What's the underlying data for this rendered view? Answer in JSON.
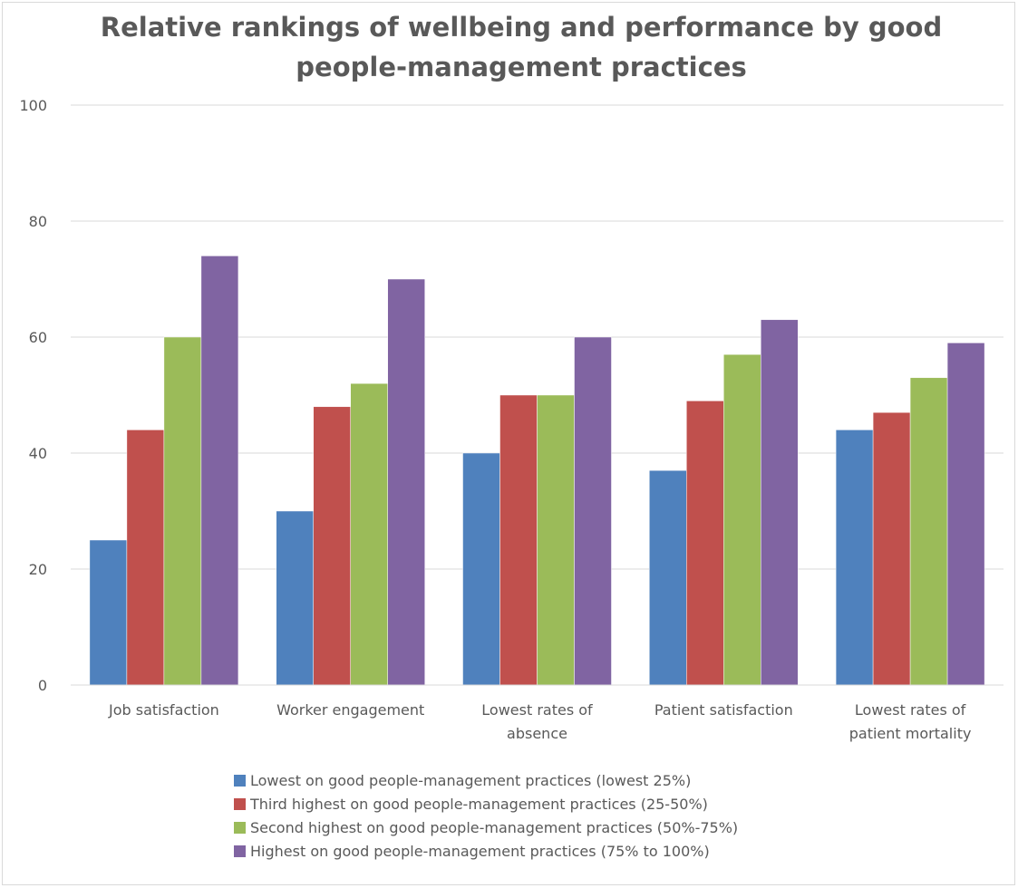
{
  "chart_data": {
    "type": "bar",
    "title": "Relative rankings of wellbeing and performance by good people-management practices",
    "xlabel": "",
    "ylabel": "",
    "ylim": [
      0,
      100
    ],
    "yticks": [
      0,
      20,
      40,
      60,
      80,
      100
    ],
    "grid": true,
    "legend_position": "bottom",
    "categories": [
      [
        "Job satisfaction"
      ],
      [
        "Worker engagement"
      ],
      [
        "Lowest rates of",
        "absence"
      ],
      [
        "Patient satisfaction"
      ],
      [
        "Lowest rates of",
        "patient mortality"
      ]
    ],
    "series": [
      {
        "name": "Lowest on good people-management practices (lowest 25%)",
        "color": "#4f81bd",
        "values": [
          25,
          30,
          40,
          37,
          44
        ]
      },
      {
        "name": "Third highest on good people-management practices (25-50%)",
        "color": "#c0504d",
        "values": [
          44,
          48,
          50,
          49,
          47
        ]
      },
      {
        "name": "Second highest on good people-management practices (50%-75%)",
        "color": "#9bbb59",
        "values": [
          60,
          52,
          50,
          57,
          53
        ]
      },
      {
        "name": "Highest on good people-management practices (75% to 100%)",
        "color": "#8064a2",
        "values": [
          74,
          70,
          60,
          63,
          59
        ]
      }
    ]
  }
}
